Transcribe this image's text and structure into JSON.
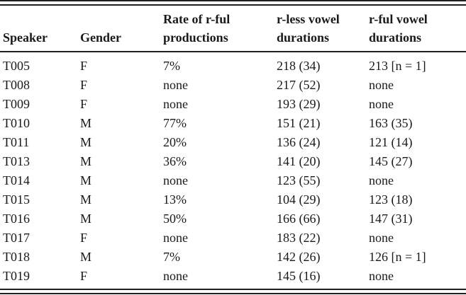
{
  "table": {
    "columns": [
      "Speaker",
      "Gender",
      "Rate of r-ful productions",
      "r-less vowel durations",
      "r-ful vowel durations"
    ],
    "rows": [
      [
        "T005",
        "F",
        "7%",
        "218 (34)",
        "213 [n = 1]"
      ],
      [
        "T008",
        "F",
        "none",
        "217 (52)",
        "none"
      ],
      [
        "T009",
        "F",
        "none",
        "193 (29)",
        "none"
      ],
      [
        "T010",
        "M",
        "77%",
        "151 (21)",
        "163 (35)"
      ],
      [
        "T011",
        "M",
        "20%",
        "136 (24)",
        "121 (14)"
      ],
      [
        "T013",
        "M",
        "36%",
        "141 (20)",
        "145 (27)"
      ],
      [
        "T014",
        "M",
        "none",
        "123 (55)",
        "none"
      ],
      [
        "T015",
        "M",
        "13%",
        "104 (29)",
        "123 (18)"
      ],
      [
        "T016",
        "M",
        "50%",
        "166 (66)",
        "147 (31)"
      ],
      [
        "T017",
        "F",
        "none",
        "183 (22)",
        "none"
      ],
      [
        "T018",
        "M",
        "7%",
        "142 (26)",
        "126 [n = 1]"
      ],
      [
        "T019",
        "F",
        "none",
        "145 (16)",
        "none"
      ]
    ]
  },
  "colors": {
    "text": "#1a1a1a",
    "rule": "#1f1f1f",
    "background": "#ffffff"
  }
}
